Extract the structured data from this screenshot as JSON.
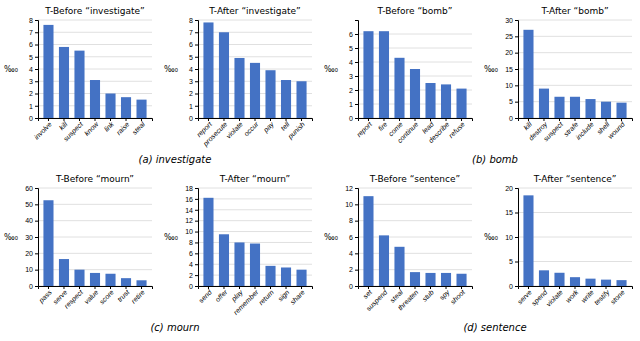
{
  "chart_data": [
    {
      "type": "bar",
      "title": "T-Before “investigate”",
      "ylabel": "‰₀",
      "categories": [
        "involve",
        "kill",
        "suspect",
        "know",
        "link",
        "raise",
        "steal"
      ],
      "values": [
        7.6,
        5.8,
        5.5,
        3.1,
        2.0,
        1.7,
        1.5
      ],
      "color": "#4472C4",
      "ylim": [
        0,
        8
      ],
      "yticks": [
        0,
        1,
        2,
        3,
        4,
        5,
        6,
        7,
        8
      ],
      "grid": true
    },
    {
      "type": "bar",
      "title": "T-After “investigate”",
      "ylabel": "‰₀",
      "categories": [
        "report",
        "prosecute",
        "violate",
        "occur",
        "pay",
        "tell",
        "punish"
      ],
      "values": [
        7.8,
        7.0,
        4.9,
        4.5,
        3.9,
        3.1,
        3.0
      ],
      "color": "#4472C4",
      "ylim": [
        0,
        8
      ],
      "yticks": [
        0,
        1,
        2,
        3,
        4,
        5,
        6,
        7,
        8
      ],
      "grid": true
    },
    {
      "type": "bar",
      "title": "T-Before “bomb”",
      "ylabel": "‰₀",
      "categories": [
        "report",
        "fire",
        "come",
        "continue",
        "lead",
        "describe",
        "refuse"
      ],
      "values": [
        6.2,
        6.2,
        4.3,
        3.5,
        2.5,
        2.4,
        2.1
      ],
      "color": "#4472C4",
      "ylim": [
        0,
        7
      ],
      "yticks": [
        0,
        1,
        2,
        3,
        4,
        5,
        6
      ],
      "grid": true
    },
    {
      "type": "bar",
      "title": "T-After “bomb”",
      "ylabel": "‰₀",
      "categories": [
        "kill",
        "destroy",
        "suspect",
        "strafe",
        "include",
        "shell",
        "wound"
      ],
      "values": [
        27.0,
        9.0,
        6.5,
        6.5,
        5.8,
        5.0,
        4.7
      ],
      "color": "#4472C4",
      "ylim": [
        0,
        30
      ],
      "yticks": [
        0,
        5,
        10,
        15,
        20,
        25,
        30
      ],
      "grid": true
    },
    {
      "type": "bar",
      "title": "T-Before “mourn”",
      "ylabel": "‰₀",
      "categories": [
        "pass",
        "serve",
        "respect",
        "value",
        "score",
        "trust",
        "retire"
      ],
      "values": [
        52.5,
        16.5,
        10.0,
        8.0,
        7.5,
        4.8,
        3.5
      ],
      "color": "#4472C4",
      "ylim": [
        0,
        60
      ],
      "yticks": [
        0,
        10,
        20,
        30,
        40,
        50,
        60
      ],
      "grid": true
    },
    {
      "type": "bar",
      "title": "T-After “mourn”",
      "ylabel": "‰₀",
      "categories": [
        "send",
        "offer",
        "play",
        "remember",
        "return",
        "sign",
        "share"
      ],
      "values": [
        16.2,
        9.5,
        8.0,
        7.8,
        3.7,
        3.4,
        3.0
      ],
      "color": "#4472C4",
      "ylim": [
        0,
        18
      ],
      "yticks": [
        0,
        2,
        4,
        6,
        8,
        10,
        12,
        14,
        16,
        18
      ],
      "grid": true
    },
    {
      "type": "bar",
      "title": "T-Before “sentence”",
      "ylabel": "‰₀",
      "categories": [
        "set",
        "suspend",
        "steal",
        "threaten",
        "stub",
        "spy",
        "shoot"
      ],
      "values": [
        11.0,
        6.2,
        4.8,
        1.7,
        1.6,
        1.6,
        1.5
      ],
      "color": "#4472C4",
      "ylim": [
        0,
        12
      ],
      "yticks": [
        0,
        2,
        4,
        6,
        8,
        10,
        12
      ],
      "grid": true
    },
    {
      "type": "bar",
      "title": "T-After “sentence”",
      "ylabel": "‰₀",
      "categories": [
        "serve",
        "spend",
        "violate",
        "work",
        "write",
        "testify",
        "stone"
      ],
      "values": [
        18.5,
        3.2,
        2.7,
        1.8,
        1.5,
        1.3,
        1.2
      ],
      "color": "#4472C4",
      "ylim": [
        0,
        20
      ],
      "yticks": [
        0,
        5,
        10,
        15,
        20
      ],
      "grid": true
    }
  ],
  "annotations": [
    "(a) investigate",
    "(b) bomb",
    "(c) mourn",
    "(d) sentence"
  ]
}
